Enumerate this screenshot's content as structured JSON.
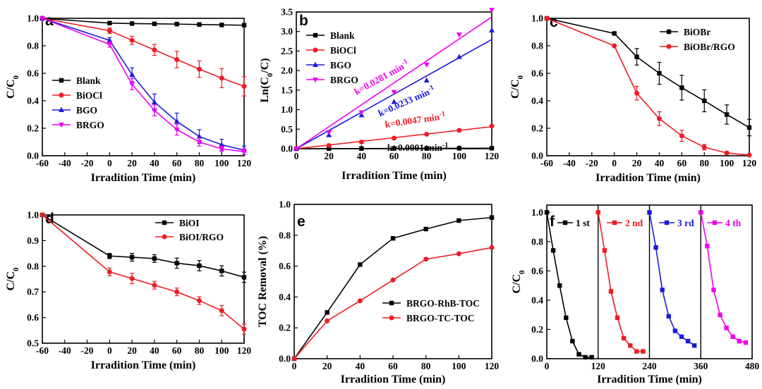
{
  "chart_data": [
    {
      "panel": "a",
      "type": "line",
      "xlabel": "Irradition Time (min)",
      "ylabel": "C/C0",
      "xlim": [
        -60,
        120
      ],
      "ylim": [
        0,
        1.0
      ],
      "xticks": [
        -60,
        -40,
        -20,
        0,
        20,
        40,
        60,
        80,
        100,
        120
      ],
      "yticks": [
        0.0,
        0.2,
        0.4,
        0.6,
        0.8,
        1.0
      ],
      "legend_loc": "center-left",
      "series": [
        {
          "name": "Blank",
          "color": "#000000",
          "marker": "square",
          "x": [
            -60,
            0,
            20,
            40,
            60,
            80,
            100,
            120
          ],
          "y": [
            1.0,
            0.965,
            0.962,
            0.96,
            0.958,
            0.955,
            0.952,
            0.95
          ]
        },
        {
          "name": "BiOCl",
          "color": "#ee1c24",
          "marker": "circle",
          "x": [
            -60,
            0,
            20,
            40,
            60,
            80,
            100,
            120
          ],
          "y": [
            1.0,
            0.91,
            0.84,
            0.77,
            0.7,
            0.63,
            0.565,
            0.505
          ],
          "err": [
            0,
            0.02,
            0.03,
            0.04,
            0.06,
            0.06,
            0.07,
            0.07
          ]
        },
        {
          "name": "BGO",
          "color": "#1a1adc",
          "marker": "triangle-up",
          "x": [
            -60,
            0,
            20,
            40,
            60,
            80,
            100,
            120
          ],
          "y": [
            1.0,
            0.84,
            0.59,
            0.39,
            0.25,
            0.14,
            0.08,
            0.04
          ],
          "err": [
            0,
            0.02,
            0.05,
            0.06,
            0.06,
            0.05,
            0.04,
            0.03
          ]
        },
        {
          "name": "BRGO",
          "color": "#ee00ee",
          "marker": "triangle-down",
          "x": [
            -60,
            0,
            20,
            40,
            60,
            80,
            100,
            120
          ],
          "y": [
            1.0,
            0.81,
            0.52,
            0.33,
            0.19,
            0.1,
            0.05,
            0.03
          ],
          "err": [
            0,
            0.02,
            0.04,
            0.04,
            0.04,
            0.03,
            0.02,
            0.02
          ]
        }
      ]
    },
    {
      "panel": "b",
      "type": "scatter",
      "xlabel": "Irradition Time (min)",
      "ylabel": "Ln(C0/C)",
      "xlim": [
        0,
        120
      ],
      "ylim": [
        0,
        3.5
      ],
      "xticks": [
        0,
        20,
        40,
        60,
        80,
        100,
        120
      ],
      "yticks": [
        0.0,
        0.5,
        1.0,
        1.5,
        2.0,
        2.5,
        3.0,
        3.5
      ],
      "legend_loc": "upper-left",
      "series": [
        {
          "name": "Blank",
          "color": "#000000",
          "marker": "square",
          "slope": 0.0001,
          "x": [
            0,
            20,
            40,
            60,
            80,
            100,
            120
          ],
          "y": [
            0,
            0.002,
            0.004,
            0.006,
            0.008,
            0.01,
            0.012
          ]
        },
        {
          "name": "BiOCl",
          "color": "#ee1c24",
          "marker": "circle",
          "slope": 0.0047,
          "x": [
            0,
            20,
            40,
            60,
            80,
            100,
            120
          ],
          "y": [
            0,
            0.08,
            0.17,
            0.27,
            0.37,
            0.47,
            0.58
          ]
        },
        {
          "name": "BGO",
          "color": "#1a1adc",
          "marker": "triangle-up",
          "slope": 0.0233,
          "x": [
            0,
            20,
            40,
            60,
            80,
            100,
            120
          ],
          "y": [
            0,
            0.35,
            0.86,
            1.2,
            1.75,
            2.35,
            3.03
          ]
        },
        {
          "name": "BRGO",
          "color": "#ee00ee",
          "marker": "triangle-down",
          "slope": 0.0281,
          "x": [
            0,
            20,
            40,
            60,
            80,
            100,
            120
          ],
          "y": [
            0,
            0.42,
            0.93,
            1.45,
            2.15,
            2.92,
            3.55
          ]
        }
      ],
      "annotations": [
        {
          "text": "k=0.0281 min-1",
          "color": "#ee00ee"
        },
        {
          "text": "k=0.0233 min-1",
          "color": "#1a1adc"
        },
        {
          "text": "k=0.0047 min-1",
          "color": "#ee1c24"
        },
        {
          "text": "k=0.0001 min-1",
          "color": "#000000"
        }
      ]
    },
    {
      "panel": "c",
      "type": "line",
      "xlabel": "Irradition Time (min)",
      "ylabel": "C/C0",
      "xlim": [
        -60,
        120
      ],
      "ylim": [
        0,
        1.0
      ],
      "xticks": [
        -60,
        -40,
        -20,
        0,
        20,
        40,
        60,
        80,
        100,
        120
      ],
      "yticks": [
        0.0,
        0.2,
        0.4,
        0.6,
        0.8,
        1.0
      ],
      "legend_loc": "upper-right",
      "series": [
        {
          "name": "BiOBr",
          "color": "#000000",
          "marker": "square",
          "x": [
            -60,
            0,
            20,
            40,
            60,
            80,
            100,
            120
          ],
          "y": [
            1.0,
            0.89,
            0.72,
            0.6,
            0.495,
            0.4,
            0.3,
            0.205
          ],
          "err": [
            0,
            0.01,
            0.06,
            0.08,
            0.09,
            0.08,
            0.07,
            0.06
          ]
        },
        {
          "name": "BiOBr/RGO",
          "color": "#ee1c24",
          "marker": "circle",
          "x": [
            -60,
            0,
            20,
            40,
            60,
            80,
            100,
            120
          ],
          "y": [
            1.0,
            0.8,
            0.455,
            0.27,
            0.145,
            0.062,
            0.02,
            0.005
          ],
          "err": [
            0,
            0,
            0.05,
            0.05,
            0.04,
            0.02,
            0.01,
            0.005
          ]
        }
      ]
    },
    {
      "panel": "d",
      "type": "line",
      "xlabel": "Irradition Time (min)",
      "ylabel": "C/C0",
      "xlim": [
        -60,
        120
      ],
      "ylim": [
        0.5,
        1.0
      ],
      "xticks": [
        -60,
        -40,
        -20,
        0,
        20,
        40,
        60,
        80,
        100,
        120
      ],
      "yticks": [
        0.5,
        0.6,
        0.7,
        0.8,
        0.9,
        1.0
      ],
      "legend_loc": "upper-right",
      "series": [
        {
          "name": "BiOI",
          "color": "#000000",
          "marker": "square",
          "x": [
            -60,
            0,
            20,
            40,
            60,
            80,
            100,
            120
          ],
          "y": [
            1.0,
            0.84,
            0.835,
            0.83,
            0.812,
            0.802,
            0.782,
            0.757
          ],
          "err": [
            0,
            0.01,
            0.015,
            0.015,
            0.02,
            0.02,
            0.02,
            0.02
          ]
        },
        {
          "name": "BiOI/RGO",
          "color": "#ee1c24",
          "marker": "circle",
          "x": [
            -60,
            0,
            20,
            40,
            60,
            80,
            100,
            120
          ],
          "y": [
            1.0,
            0.778,
            0.752,
            0.726,
            0.7,
            0.666,
            0.627,
            0.555
          ],
          "err": [
            0,
            0.015,
            0.02,
            0.015,
            0.015,
            0.015,
            0.02,
            0.02
          ]
        }
      ]
    },
    {
      "panel": "e",
      "type": "line",
      "xlabel": "Irradition Time (min)",
      "ylabel": "TOC Removal (%)",
      "xlim": [
        0,
        120
      ],
      "ylim": [
        0,
        1.0
      ],
      "xticks": [
        0,
        20,
        40,
        60,
        80,
        100,
        120
      ],
      "yticks": [
        0.0,
        0.2,
        0.4,
        0.6,
        0.8,
        1.0
      ],
      "legend_loc": "lower-right",
      "series": [
        {
          "name": "BRGO-RhB-TOC",
          "color": "#000000",
          "marker": "square",
          "x": [
            0,
            20,
            40,
            60,
            80,
            100,
            120
          ],
          "y": [
            0,
            0.3,
            0.61,
            0.78,
            0.84,
            0.895,
            0.915
          ]
        },
        {
          "name": "BRGO-TC-TOC",
          "color": "#ee1c24",
          "marker": "circle",
          "x": [
            0,
            20,
            40,
            60,
            80,
            100,
            120
          ],
          "y": [
            0,
            0.245,
            0.375,
            0.51,
            0.645,
            0.68,
            0.72
          ]
        }
      ]
    },
    {
      "panel": "f",
      "type": "line",
      "xlabel": "Irradition Time (min)",
      "ylabel": "C/C0",
      "xlim": [
        0,
        480
      ],
      "ylim": [
        0,
        1.05
      ],
      "xticks": [
        0,
        120,
        240,
        360,
        480
      ],
      "yticks": [
        0.0,
        0.2,
        0.4,
        0.6,
        0.8,
        1.0
      ],
      "cycle_dividers": [
        120,
        240,
        360
      ],
      "series": [
        {
          "name": "1 st",
          "color": "#000000",
          "marker": "square",
          "x": [
            0,
            15,
            30,
            45,
            60,
            75,
            90,
            105
          ],
          "y": [
            1.0,
            0.74,
            0.5,
            0.28,
            0.12,
            0.03,
            0.01,
            0.01
          ]
        },
        {
          "name": "2 nd",
          "color": "#ee1c24",
          "marker": "square",
          "x": [
            120,
            135,
            150,
            165,
            180,
            195,
            210,
            225
          ],
          "y": [
            1.0,
            0.74,
            0.46,
            0.28,
            0.14,
            0.09,
            0.05,
            0.05
          ]
        },
        {
          "name": "3 rd",
          "color": "#1a1adc",
          "marker": "square",
          "x": [
            240,
            255,
            270,
            285,
            300,
            315,
            330,
            345
          ],
          "y": [
            1.0,
            0.76,
            0.47,
            0.29,
            0.19,
            0.15,
            0.12,
            0.09
          ]
        },
        {
          "name": "4 th",
          "color": "#ee00ee",
          "marker": "square",
          "x": [
            360,
            375,
            390,
            405,
            420,
            435,
            450,
            465
          ],
          "y": [
            1.0,
            0.77,
            0.47,
            0.3,
            0.21,
            0.15,
            0.12,
            0.11
          ]
        }
      ]
    }
  ]
}
